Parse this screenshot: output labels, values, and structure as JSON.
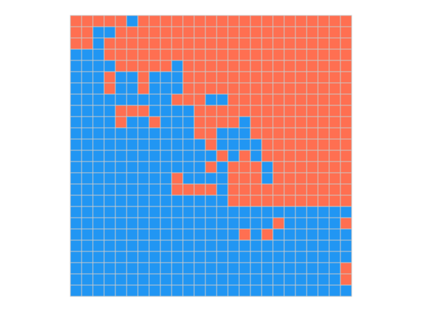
{
  "grid": {
    "colors": [
      "#2196f3",
      "#ff6f51"
    ],
    "rows": [
      [
        1,
        1,
        1,
        1,
        1,
        0,
        1,
        1,
        1,
        1,
        1,
        1,
        1,
        1,
        1,
        1,
        1,
        1,
        1,
        1,
        1,
        1,
        1,
        1,
        1
      ],
      [
        1,
        1,
        0,
        0,
        1,
        1,
        1,
        1,
        1,
        1,
        1,
        1,
        1,
        1,
        1,
        1,
        1,
        1,
        1,
        1,
        1,
        1,
        1,
        1,
        1
      ],
      [
        1,
        1,
        0,
        1,
        1,
        1,
        1,
        1,
        1,
        1,
        1,
        1,
        1,
        1,
        1,
        1,
        1,
        1,
        1,
        1,
        1,
        1,
        1,
        1,
        1
      ],
      [
        0,
        0,
        0,
        1,
        1,
        1,
        1,
        1,
        1,
        1,
        1,
        1,
        1,
        1,
        1,
        1,
        1,
        1,
        1,
        1,
        1,
        1,
        1,
        1,
        1
      ],
      [
        0,
        0,
        0,
        0,
        1,
        1,
        1,
        1,
        1,
        0,
        1,
        1,
        1,
        1,
        1,
        1,
        1,
        1,
        1,
        1,
        1,
        1,
        1,
        1,
        1
      ],
      [
        0,
        0,
        0,
        1,
        0,
        0,
        1,
        0,
        0,
        0,
        1,
        1,
        1,
        1,
        1,
        1,
        1,
        1,
        1,
        1,
        1,
        1,
        1,
        1,
        1
      ],
      [
        0,
        0,
        0,
        1,
        0,
        0,
        1,
        0,
        0,
        0,
        1,
        1,
        1,
        1,
        1,
        1,
        1,
        1,
        1,
        1,
        1,
        1,
        1,
        1,
        1
      ],
      [
        0,
        0,
        0,
        0,
        0,
        0,
        0,
        0,
        0,
        1,
        1,
        1,
        0,
        0,
        1,
        1,
        1,
        1,
        1,
        1,
        1,
        1,
        1,
        1,
        1
      ],
      [
        0,
        0,
        0,
        0,
        1,
        1,
        1,
        0,
        0,
        0,
        0,
        1,
        1,
        1,
        1,
        1,
        1,
        1,
        1,
        1,
        1,
        1,
        1,
        1,
        1
      ],
      [
        0,
        0,
        0,
        0,
        1,
        0,
        0,
        1,
        0,
        0,
        0,
        1,
        1,
        1,
        1,
        0,
        1,
        1,
        1,
        1,
        1,
        1,
        1,
        1,
        1
      ],
      [
        0,
        0,
        0,
        0,
        0,
        0,
        0,
        0,
        0,
        0,
        0,
        1,
        1,
        0,
        0,
        0,
        1,
        1,
        1,
        1,
        1,
        1,
        1,
        1,
        1
      ],
      [
        0,
        0,
        0,
        0,
        0,
        0,
        0,
        0,
        0,
        0,
        0,
        0,
        1,
        0,
        0,
        0,
        0,
        1,
        1,
        1,
        1,
        1,
        1,
        1,
        1
      ],
      [
        0,
        0,
        0,
        0,
        0,
        0,
        0,
        0,
        0,
        0,
        0,
        0,
        0,
        1,
        0,
        1,
        0,
        1,
        1,
        1,
        1,
        1,
        1,
        1,
        1
      ],
      [
        0,
        0,
        0,
        0,
        0,
        0,
        0,
        0,
        0,
        0,
        0,
        0,
        1,
        0,
        1,
        1,
        1,
        0,
        1,
        1,
        1,
        1,
        1,
        1,
        1
      ],
      [
        0,
        0,
        0,
        0,
        0,
        0,
        0,
        0,
        0,
        1,
        0,
        0,
        0,
        0,
        1,
        1,
        1,
        0,
        1,
        1,
        1,
        1,
        1,
        1,
        1
      ],
      [
        0,
        0,
        0,
        0,
        0,
        0,
        0,
        0,
        0,
        1,
        1,
        1,
        1,
        0,
        1,
        1,
        1,
        1,
        1,
        1,
        1,
        1,
        1,
        1,
        1
      ],
      [
        0,
        0,
        0,
        0,
        0,
        0,
        0,
        0,
        0,
        0,
        0,
        0,
        0,
        0,
        1,
        1,
        1,
        1,
        1,
        1,
        1,
        1,
        1,
        1,
        1
      ],
      [
        0,
        0,
        0,
        0,
        0,
        0,
        0,
        0,
        0,
        0,
        0,
        0,
        0,
        0,
        0,
        0,
        0,
        0,
        0,
        0,
        0,
        0,
        0,
        0,
        0
      ],
      [
        0,
        0,
        0,
        0,
        0,
        0,
        0,
        0,
        0,
        0,
        0,
        0,
        0,
        0,
        0,
        0,
        0,
        0,
        1,
        0,
        0,
        0,
        0,
        0,
        1
      ],
      [
        0,
        0,
        0,
        0,
        0,
        0,
        0,
        0,
        0,
        0,
        0,
        0,
        0,
        0,
        0,
        1,
        0,
        1,
        0,
        0,
        0,
        0,
        0,
        0,
        0
      ],
      [
        0,
        0,
        0,
        0,
        0,
        0,
        0,
        0,
        0,
        0,
        0,
        0,
        0,
        0,
        0,
        0,
        0,
        0,
        0,
        0,
        0,
        0,
        0,
        0,
        0
      ],
      [
        0,
        0,
        0,
        0,
        0,
        0,
        0,
        0,
        0,
        0,
        0,
        0,
        0,
        0,
        0,
        0,
        0,
        0,
        0,
        0,
        0,
        0,
        0,
        0,
        0
      ],
      [
        0,
        0,
        0,
        0,
        0,
        0,
        0,
        0,
        0,
        0,
        0,
        0,
        0,
        0,
        0,
        0,
        0,
        0,
        0,
        0,
        0,
        0,
        0,
        0,
        1
      ],
      [
        0,
        0,
        0,
        0,
        0,
        0,
        0,
        0,
        0,
        0,
        0,
        0,
        0,
        0,
        0,
        0,
        0,
        0,
        0,
        0,
        0,
        0,
        0,
        0,
        1
      ],
      [
        0,
        0,
        0,
        0,
        0,
        0,
        0,
        0,
        0,
        0,
        0,
        0,
        0,
        0,
        0,
        0,
        0,
        0,
        0,
        0,
        0,
        0,
        0,
        0,
        0
      ]
    ]
  }
}
